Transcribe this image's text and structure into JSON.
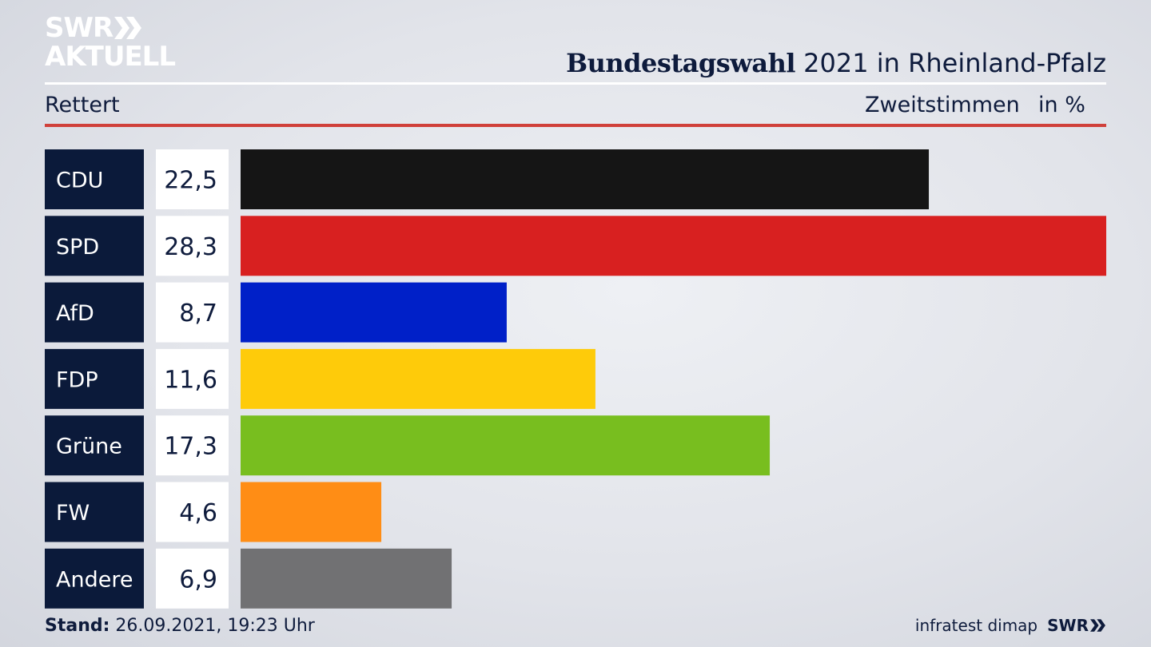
{
  "logo": {
    "line1": "SWR",
    "line2": "AKTUELL"
  },
  "header": {
    "title_bold": "Bundestagswahl",
    "title_rest": " 2021 in Rheinland-Pfalz",
    "location": "Rettert",
    "measure": "Zweitstimmen",
    "unit": "in %"
  },
  "footer": {
    "stand_label": "Stand:",
    "stand_value": " 26.09.2021, 19:23 Uhr",
    "source": "infratest dimap",
    "brand": "SWR"
  },
  "chart_data": {
    "type": "bar",
    "orientation": "horizontal",
    "title": "Bundestagswahl 2021 in Rheinland-Pfalz",
    "subtitle": "Rettert",
    "ylabel": "Zweitstimmen in %",
    "categories": [
      "CDU",
      "SPD",
      "AfD",
      "FDP",
      "Grüne",
      "FW",
      "Andere"
    ],
    "values": [
      22.5,
      28.3,
      8.7,
      11.6,
      17.3,
      4.6,
      6.9
    ],
    "value_labels": [
      "22,5",
      "28,3",
      "8,7",
      "11,6",
      "17,3",
      "4,6",
      "6,9"
    ],
    "colors": [
      "#151515",
      "#d82020",
      "#0020c8",
      "#fecb0a",
      "#78be1f",
      "#ff8d15",
      "#717173"
    ],
    "xlim": [
      0,
      28.3
    ],
    "grid": false,
    "legend": "none"
  }
}
